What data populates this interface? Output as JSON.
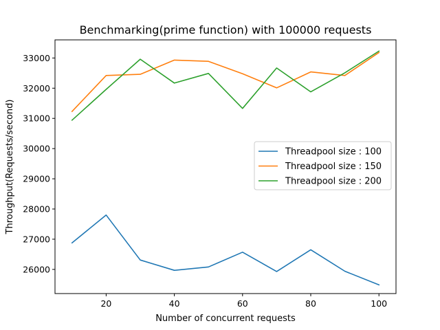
{
  "chart_data": {
    "type": "line",
    "title": "Benchmarking(prime function) with 100000 requests",
    "xlabel": "Number of concurrent requests",
    "ylabel": "Throughput(Requests/second)",
    "xlim": [
      5,
      105
    ],
    "ylim": [
      25200,
      33600
    ],
    "x_ticks": [
      20,
      40,
      60,
      80,
      100
    ],
    "y_ticks": [
      26000,
      27000,
      28000,
      29000,
      30000,
      31000,
      32000,
      33000
    ],
    "x": [
      10,
      20,
      30,
      40,
      50,
      60,
      70,
      80,
      90,
      100
    ],
    "series": [
      {
        "name": "Threadpool size : 100",
        "color": "#1f77b4",
        "values": [
          26880,
          27800,
          26310,
          25970,
          26080,
          26570,
          25930,
          26650,
          25940,
          25490
        ]
      },
      {
        "name": "Threadpool size : 150",
        "color": "#ff7f0e",
        "values": [
          31230,
          32420,
          32460,
          32930,
          32890,
          32480,
          32010,
          32540,
          32420,
          33180
        ]
      },
      {
        "name": "Threadpool size : 200",
        "color": "#2ca02c",
        "values": [
          30940,
          31960,
          32960,
          32170,
          32490,
          31330,
          32670,
          31880,
          32510,
          33230
        ]
      }
    ],
    "legend_position": "center-right",
    "grid": false
  }
}
